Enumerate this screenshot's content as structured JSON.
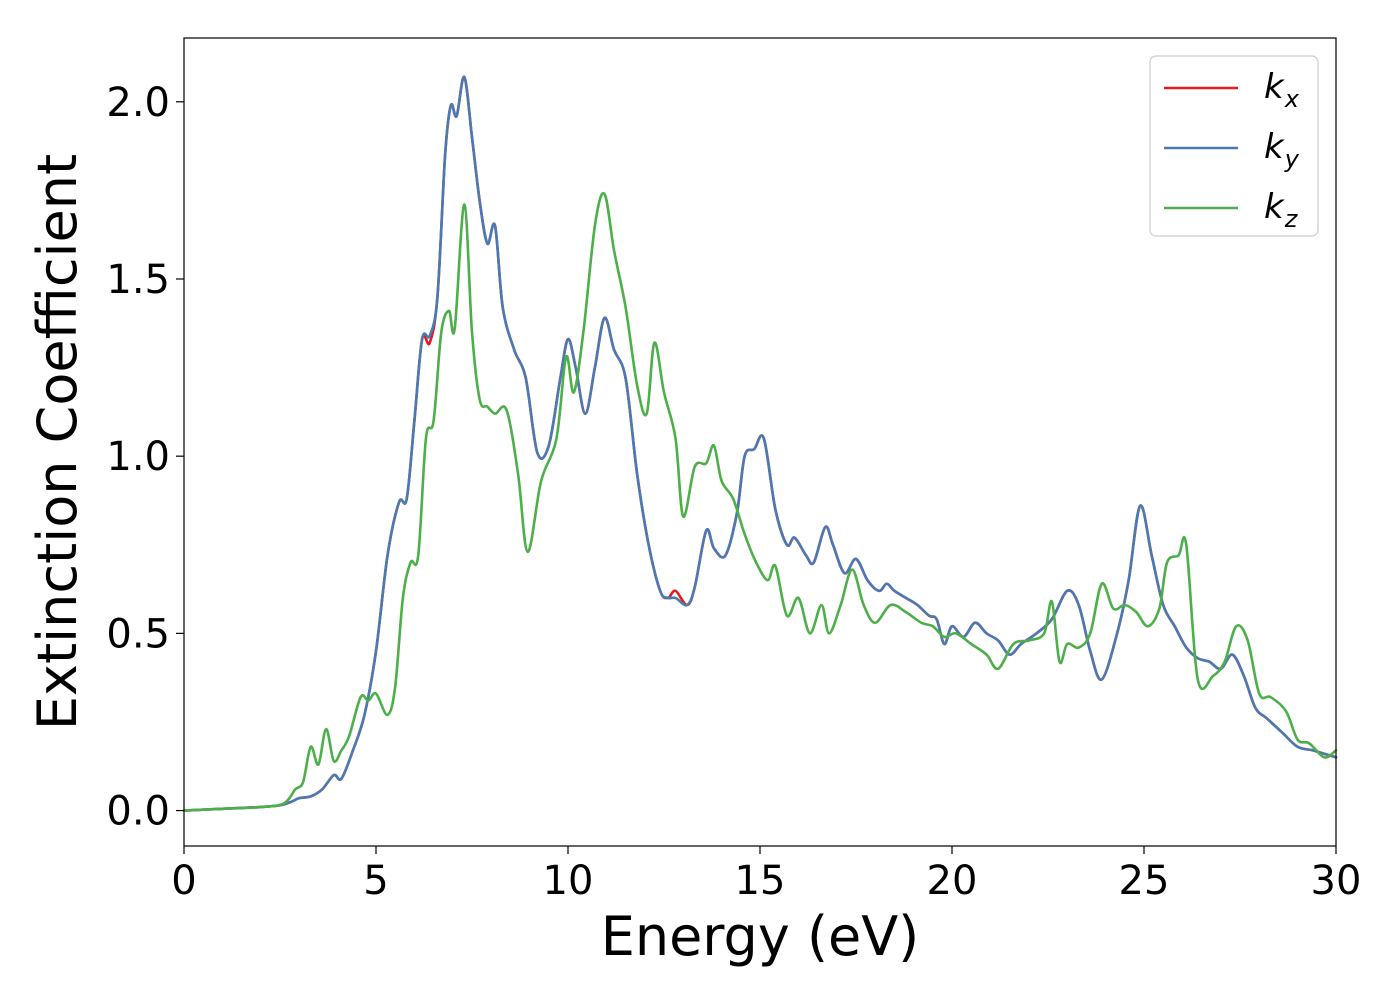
{
  "chart_data": {
    "type": "line",
    "xlabel": "Energy (eV)",
    "ylabel": "Extinction Coefficient",
    "xlim": [
      0,
      30
    ],
    "ylim": [
      -0.1,
      2.18
    ],
    "xticks": [
      0,
      5,
      10,
      15,
      20,
      25,
      30
    ],
    "xtick_labels": [
      "0",
      "5",
      "10",
      "15",
      "20",
      "25",
      "30"
    ],
    "yticks": [
      0.0,
      0.5,
      1.0,
      1.5,
      2.0
    ],
    "ytick_labels": [
      "0.0",
      "0.5",
      "1.0",
      "1.5",
      "2.0"
    ],
    "grid": false,
    "legend_position": "top-right",
    "series": [
      {
        "name": "k_x",
        "legend_base": "k",
        "legend_sub": "x",
        "color": "#e41a1c",
        "x": [
          0,
          1,
          2,
          2.5,
          2.8,
          3.0,
          3.3,
          3.6,
          3.9,
          4.1,
          4.4,
          4.7,
          5.0,
          5.3,
          5.6,
          5.8,
          6.0,
          6.2,
          6.4,
          6.6,
          6.8,
          6.95,
          7.1,
          7.3,
          7.5,
          7.7,
          7.9,
          8.1,
          8.3,
          8.6,
          8.9,
          9.2,
          9.5,
          9.8,
          10.0,
          10.2,
          10.45,
          10.7,
          10.95,
          11.2,
          11.5,
          11.8,
          12.1,
          12.4,
          12.6,
          12.8,
          13.1,
          13.3,
          13.6,
          13.8,
          14.1,
          14.4,
          14.6,
          14.85,
          15.1,
          15.4,
          15.7,
          15.9,
          16.2,
          16.4,
          16.7,
          16.9,
          17.2,
          17.5,
          17.8,
          18.1,
          18.3,
          18.5,
          18.8,
          19.1,
          19.4,
          19.6,
          19.8,
          20.0,
          20.3,
          20.6,
          20.9,
          21.2,
          21.5,
          21.8,
          22.2,
          22.6,
          23.0,
          23.3,
          23.6,
          23.9,
          24.3,
          24.6,
          24.9,
          25.2,
          25.5,
          25.8,
          26.1,
          26.4,
          26.7,
          27.0,
          27.3,
          27.6,
          27.9,
          28.2,
          28.6,
          29.0,
          29.4,
          29.7,
          30.0
        ],
        "y": [
          0.0,
          0.005,
          0.01,
          0.015,
          0.025,
          0.035,
          0.04,
          0.06,
          0.1,
          0.09,
          0.17,
          0.27,
          0.45,
          0.72,
          0.87,
          0.88,
          1.1,
          1.33,
          1.32,
          1.45,
          1.85,
          1.99,
          1.96,
          2.07,
          1.9,
          1.72,
          1.6,
          1.65,
          1.42,
          1.3,
          1.22,
          1.01,
          1.03,
          1.22,
          1.33,
          1.25,
          1.12,
          1.25,
          1.39,
          1.3,
          1.22,
          0.95,
          0.75,
          0.62,
          0.6,
          0.62,
          0.58,
          0.63,
          0.79,
          0.74,
          0.72,
          0.84,
          1.0,
          1.02,
          1.05,
          0.85,
          0.75,
          0.77,
          0.72,
          0.7,
          0.8,
          0.75,
          0.67,
          0.71,
          0.65,
          0.62,
          0.64,
          0.62,
          0.6,
          0.58,
          0.55,
          0.54,
          0.47,
          0.52,
          0.49,
          0.53,
          0.5,
          0.48,
          0.44,
          0.47,
          0.5,
          0.54,
          0.62,
          0.58,
          0.45,
          0.37,
          0.5,
          0.65,
          0.86,
          0.72,
          0.58,
          0.52,
          0.46,
          0.43,
          0.42,
          0.4,
          0.44,
          0.38,
          0.29,
          0.26,
          0.22,
          0.18,
          0.17,
          0.16,
          0.15
        ]
      },
      {
        "name": "k_y",
        "legend_base": "k",
        "legend_sub": "y",
        "color": "#4a7ab5",
        "x": [
          0,
          1,
          2,
          2.5,
          2.8,
          3.0,
          3.3,
          3.6,
          3.9,
          4.1,
          4.4,
          4.7,
          5.0,
          5.3,
          5.6,
          5.8,
          6.0,
          6.2,
          6.4,
          6.6,
          6.8,
          6.95,
          7.1,
          7.3,
          7.5,
          7.7,
          7.9,
          8.1,
          8.3,
          8.6,
          8.9,
          9.2,
          9.5,
          9.8,
          10.0,
          10.2,
          10.45,
          10.7,
          10.95,
          11.2,
          11.5,
          11.8,
          12.1,
          12.4,
          12.6,
          12.8,
          13.1,
          13.3,
          13.6,
          13.8,
          14.1,
          14.4,
          14.6,
          14.85,
          15.1,
          15.4,
          15.7,
          15.9,
          16.2,
          16.4,
          16.7,
          16.9,
          17.2,
          17.5,
          17.8,
          18.1,
          18.3,
          18.5,
          18.8,
          19.1,
          19.4,
          19.6,
          19.8,
          20.0,
          20.3,
          20.6,
          20.9,
          21.2,
          21.5,
          21.8,
          22.2,
          22.6,
          23.0,
          23.3,
          23.6,
          23.9,
          24.3,
          24.6,
          24.9,
          25.2,
          25.5,
          25.8,
          26.1,
          26.4,
          26.7,
          27.0,
          27.3,
          27.6,
          27.9,
          28.2,
          28.6,
          29.0,
          29.4,
          29.7,
          30.0
        ],
        "y": [
          0.0,
          0.005,
          0.01,
          0.015,
          0.025,
          0.035,
          0.04,
          0.06,
          0.1,
          0.09,
          0.17,
          0.27,
          0.45,
          0.72,
          0.87,
          0.88,
          1.1,
          1.33,
          1.34,
          1.45,
          1.85,
          1.99,
          1.96,
          2.07,
          1.9,
          1.72,
          1.6,
          1.65,
          1.42,
          1.3,
          1.22,
          1.01,
          1.03,
          1.22,
          1.33,
          1.25,
          1.12,
          1.25,
          1.39,
          1.3,
          1.22,
          0.95,
          0.75,
          0.62,
          0.6,
          0.6,
          0.58,
          0.63,
          0.79,
          0.74,
          0.72,
          0.84,
          1.0,
          1.02,
          1.05,
          0.85,
          0.75,
          0.77,
          0.72,
          0.7,
          0.8,
          0.75,
          0.67,
          0.71,
          0.65,
          0.62,
          0.64,
          0.62,
          0.6,
          0.58,
          0.55,
          0.54,
          0.47,
          0.52,
          0.49,
          0.53,
          0.5,
          0.48,
          0.44,
          0.47,
          0.5,
          0.54,
          0.62,
          0.58,
          0.45,
          0.37,
          0.5,
          0.65,
          0.86,
          0.72,
          0.58,
          0.52,
          0.46,
          0.43,
          0.42,
          0.4,
          0.44,
          0.38,
          0.29,
          0.26,
          0.22,
          0.18,
          0.17,
          0.16,
          0.15
        ]
      },
      {
        "name": "k_z",
        "legend_base": "k",
        "legend_sub": "z",
        "color": "#4daf4a",
        "x": [
          0,
          1,
          2,
          2.6,
          2.9,
          3.1,
          3.3,
          3.5,
          3.7,
          3.9,
          4.1,
          4.3,
          4.6,
          4.8,
          5.0,
          5.3,
          5.5,
          5.7,
          5.9,
          6.1,
          6.3,
          6.5,
          6.7,
          6.9,
          7.05,
          7.3,
          7.5,
          7.7,
          7.9,
          8.1,
          8.4,
          8.7,
          8.95,
          9.3,
          9.7,
          9.95,
          10.15,
          10.4,
          10.7,
          10.95,
          11.2,
          11.5,
          11.8,
          12.05,
          12.25,
          12.5,
          12.8,
          13.0,
          13.3,
          13.6,
          13.8,
          14.0,
          14.3,
          14.6,
          14.9,
          15.2,
          15.4,
          15.7,
          16.0,
          16.3,
          16.6,
          16.8,
          17.1,
          17.4,
          17.7,
          18.0,
          18.4,
          18.8,
          19.2,
          19.5,
          19.8,
          20.1,
          20.5,
          20.9,
          21.2,
          21.6,
          22.0,
          22.4,
          22.6,
          22.8,
          23.0,
          23.3,
          23.6,
          23.9,
          24.2,
          24.5,
          24.8,
          25.1,
          25.4,
          25.6,
          25.9,
          26.1,
          26.4,
          26.8,
          27.1,
          27.4,
          27.7,
          28.0,
          28.3,
          28.7,
          29.0,
          29.3,
          29.7,
          30.0
        ],
        "y": [
          0.0,
          0.005,
          0.01,
          0.02,
          0.06,
          0.08,
          0.18,
          0.13,
          0.23,
          0.14,
          0.17,
          0.21,
          0.32,
          0.31,
          0.33,
          0.27,
          0.35,
          0.6,
          0.7,
          0.72,
          1.05,
          1.1,
          1.35,
          1.41,
          1.36,
          1.71,
          1.35,
          1.16,
          1.14,
          1.12,
          1.13,
          0.95,
          0.73,
          0.93,
          1.05,
          1.28,
          1.18,
          1.35,
          1.65,
          1.74,
          1.58,
          1.42,
          1.2,
          1.12,
          1.32,
          1.18,
          1.05,
          0.83,
          0.97,
          0.98,
          1.03,
          0.93,
          0.88,
          0.78,
          0.7,
          0.65,
          0.69,
          0.55,
          0.6,
          0.5,
          0.58,
          0.5,
          0.58,
          0.68,
          0.58,
          0.53,
          0.58,
          0.56,
          0.53,
          0.52,
          0.49,
          0.5,
          0.47,
          0.44,
          0.4,
          0.47,
          0.48,
          0.5,
          0.59,
          0.42,
          0.47,
          0.46,
          0.5,
          0.64,
          0.57,
          0.58,
          0.56,
          0.52,
          0.57,
          0.7,
          0.72,
          0.75,
          0.37,
          0.38,
          0.42,
          0.52,
          0.48,
          0.33,
          0.32,
          0.28,
          0.2,
          0.19,
          0.15,
          0.17
        ]
      }
    ]
  }
}
